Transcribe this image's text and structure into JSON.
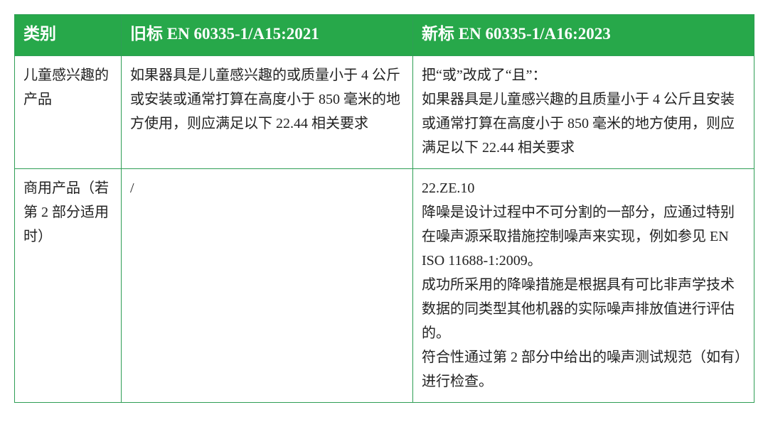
{
  "table": {
    "header_bg": "#27a84a",
    "header_color": "#ffffff",
    "border_color": "#2f9e55",
    "columns": [
      "类别",
      "旧标 EN 60335-1/A15:2021",
      "新标 EN 60335-1/A16:2023"
    ],
    "rows": [
      {
        "category": "儿童感兴趣的产品",
        "old": "如果器具是儿童感兴趣的或质量小于 4 公斤或安装或通常打算在高度小于 850 毫米的地方使用，则应满足以下 22.44 相关要求",
        "new": "把“或”改成了“且”：\n如果器具是儿童感兴趣的且质量小于 4 公斤且安装或通常打算在高度小于 850 毫米的地方使用，则应满足以下 22.44 相关要求"
      },
      {
        "category": "商用产品（若第 2 部分适用时）",
        "old": "/",
        "new": "22.ZE.10\n降噪是设计过程中不可分割的一部分，应通过特别在噪声源采取措施控制噪声来实现，例如参见 EN ISO 11688-1:2009。\n成功所采用的降噪措施是根据具有可比非声学技术数据的同类型其他机器的实际噪声排放值进行评估的。\n符合性通过第 2 部分中给出的噪声测试规范（如有）进行检查。"
      }
    ]
  }
}
